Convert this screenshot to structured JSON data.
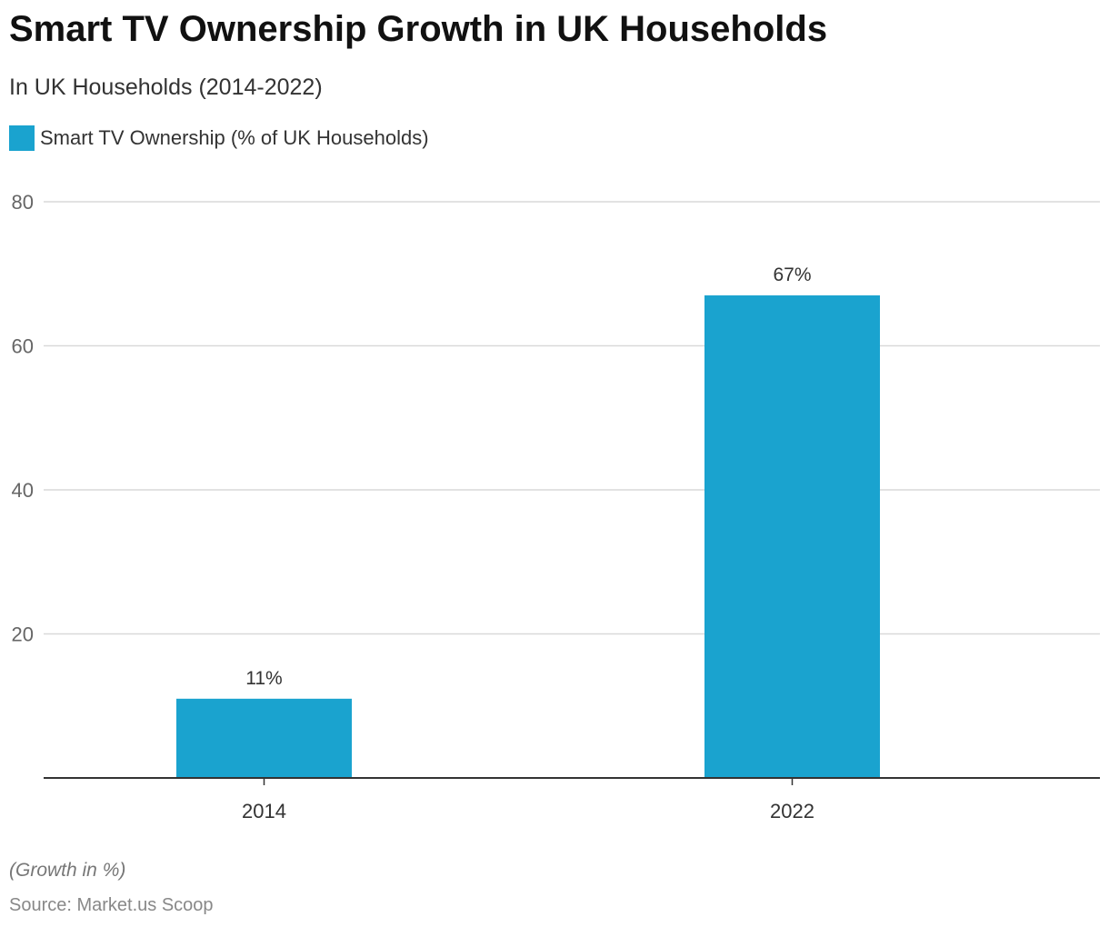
{
  "chart_data": {
    "type": "bar",
    "title": "Smart TV Ownership Growth in UK Households",
    "subtitle": "In UK Households (2014-2022)",
    "categories": [
      "2014",
      "2022"
    ],
    "series": [
      {
        "name": "Smart TV Ownership (% of UK Households)",
        "values": [
          11,
          67
        ],
        "labels": [
          "11%",
          "67%"
        ],
        "color": "#1aa3cf"
      }
    ],
    "ylim": [
      0,
      80
    ],
    "yticks": [
      20,
      40,
      60,
      80
    ],
    "grid": true,
    "legend": "top-left",
    "xlabel": "",
    "ylabel": ""
  },
  "footer": {
    "note": "(Growth in %)",
    "source": "Source: Market.us Scoop"
  }
}
